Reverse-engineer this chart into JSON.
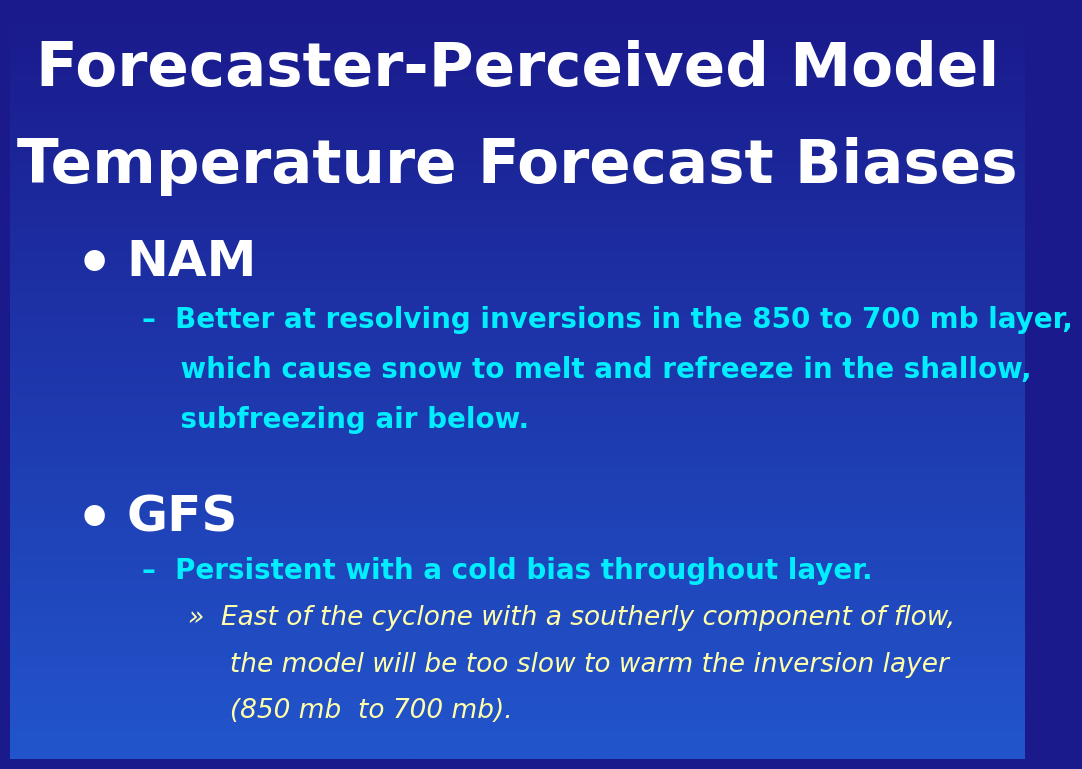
{
  "title_line1": "Forecaster-Perceived Model",
  "title_line2": "Temperature Forecast Biases",
  "title_color": "#ffffff",
  "title_fontsize": 44,
  "bg_color_top": "#1a1a8c",
  "bg_color_bottom": "#2255cc",
  "bullet1": "NAM",
  "bullet1_color": "#ffffff",
  "bullet1_fontsize": 36,
  "sub1_line1": "Better at resolving inversions in the 850 to 700 mb layer,",
  "sub1_line2": "which cause snow to melt and refreeze in the shallow,",
  "sub1_line3": "subfreezing air below.",
  "sub1_color": "#00eeff",
  "sub1_fontsize": 20,
  "bullet2": "GFS",
  "bullet2_color": "#ffffff",
  "bullet2_fontsize": 36,
  "sub2_text": "Persistent with a cold bias throughout layer.",
  "sub2_color": "#00eeff",
  "sub2_fontsize": 20,
  "sub3_line1": "East of the cyclone with a southerly component of flow,",
  "sub3_line2": "the model will be too slow to warm the inversion layer",
  "sub3_line3": "(850 mb  to 700 mb).",
  "sub3_color": "#ffffaa",
  "sub3_fontsize": 19
}
